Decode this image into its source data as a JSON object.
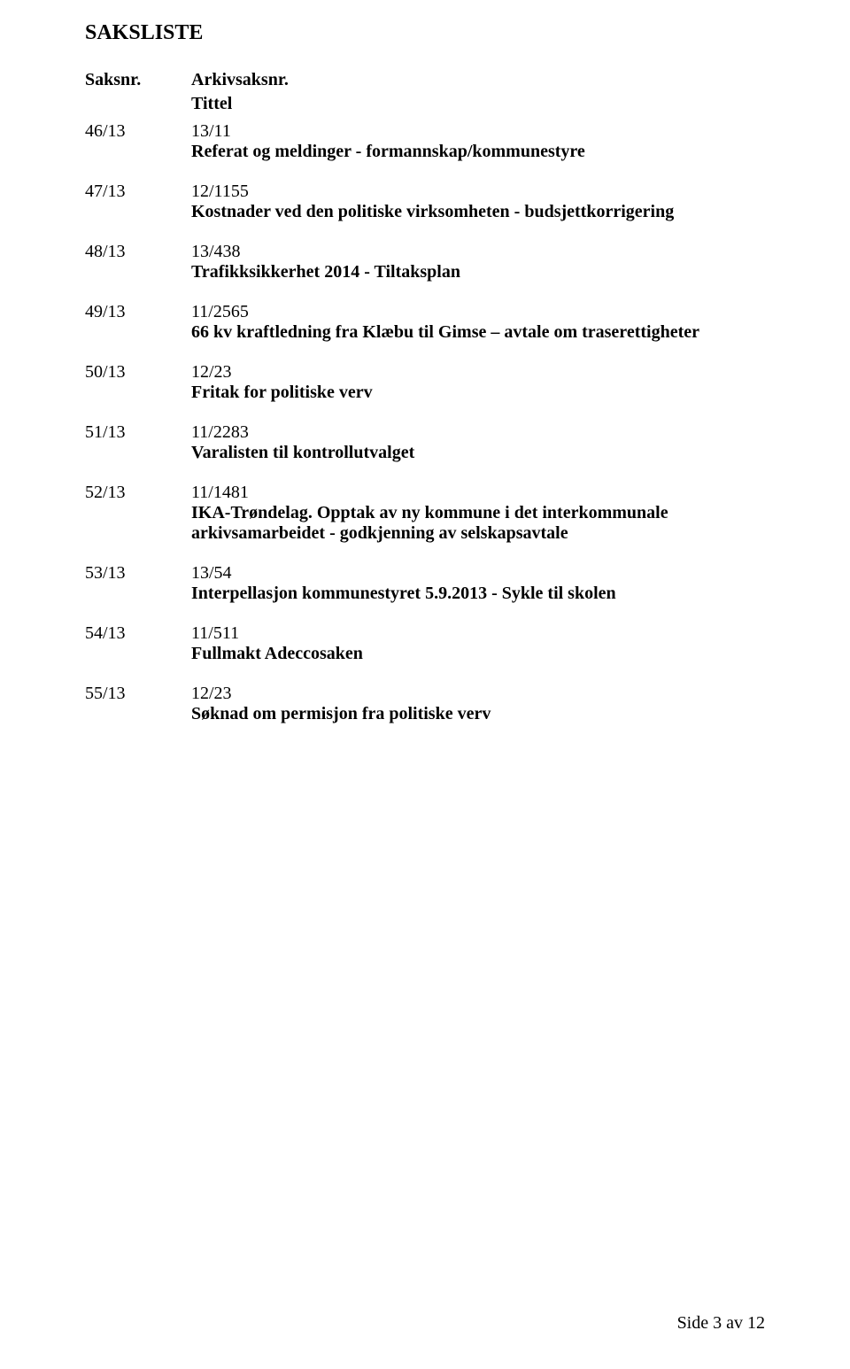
{
  "title": "SAKSLISTE",
  "headers": {
    "saksnr": "Saksnr.",
    "arkiv": "Arkivsaksnr.",
    "tittel": "Tittel"
  },
  "items": [
    {
      "saksnr": "46/13",
      "arkiv": "13/11",
      "desc": "Referat og meldinger - formannskap/kommunestyre"
    },
    {
      "saksnr": "47/13",
      "arkiv": "12/1155",
      "desc": "Kostnader ved den politiske virksomheten - budsjettkorrigering"
    },
    {
      "saksnr": "48/13",
      "arkiv": "13/438",
      "desc": "Trafikksikkerhet 2014 - Tiltaksplan"
    },
    {
      "saksnr": "49/13",
      "arkiv": "11/2565",
      "desc": "66 kv kraftledning fra Klæbu til Gimse – avtale om traserettigheter"
    },
    {
      "saksnr": "50/13",
      "arkiv": "12/23",
      "desc": "Fritak for politiske verv"
    },
    {
      "saksnr": "51/13",
      "arkiv": "11/2283",
      "desc": "Varalisten til kontrollutvalget"
    },
    {
      "saksnr": "52/13",
      "arkiv": "11/1481",
      "desc": "IKA-Trøndelag. Opptak av ny kommune i det interkommunale arkivsamarbeidet - godkjenning av selskapsavtale"
    },
    {
      "saksnr": "53/13",
      "arkiv": "13/54",
      "desc": "Interpellasjon kommunestyret 5.9.2013 - Sykle til skolen"
    },
    {
      "saksnr": "54/13",
      "arkiv": "11/511",
      "desc": "Fullmakt Adeccosaken"
    },
    {
      "saksnr": "55/13",
      "arkiv": "12/23",
      "desc": "Søknad om permisjon fra politiske verv"
    }
  ],
  "footer": "Side 3 av 12"
}
